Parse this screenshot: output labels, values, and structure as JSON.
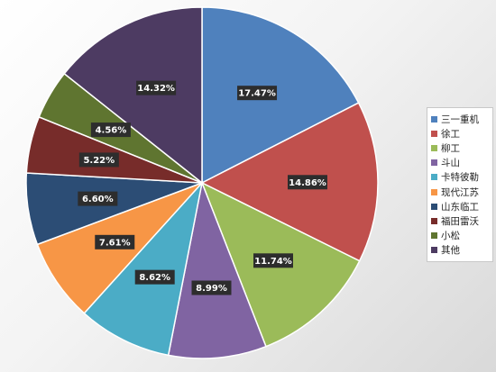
{
  "chart_data": {
    "type": "pie",
    "title": "",
    "categories": [
      "三一重机",
      "徐工",
      "柳工",
      "斗山",
      "卡特彼勒",
      "现代江苏",
      "山东临工",
      "福田雷沃",
      "小松",
      "其他"
    ],
    "values": [
      17.47,
      14.86,
      11.74,
      8.99,
      8.62,
      7.61,
      6.6,
      5.22,
      4.56,
      14.32
    ],
    "labels": [
      "17.47%",
      "14.86%",
      "11.74%",
      "8.99%",
      "8.62%",
      "7.61%",
      "6.60%",
      "5.22%",
      "4.56%",
      "14.32%"
    ],
    "colors": [
      "#4F81BD",
      "#C0504D",
      "#9BBB59",
      "#8064A2",
      "#4BACC6",
      "#F79646",
      "#2C4D75",
      "#772C2A",
      "#5F7530",
      "#4D3B62"
    ],
    "legend_position": "right",
    "start_angle": "12 o'clock, clockwise"
  }
}
